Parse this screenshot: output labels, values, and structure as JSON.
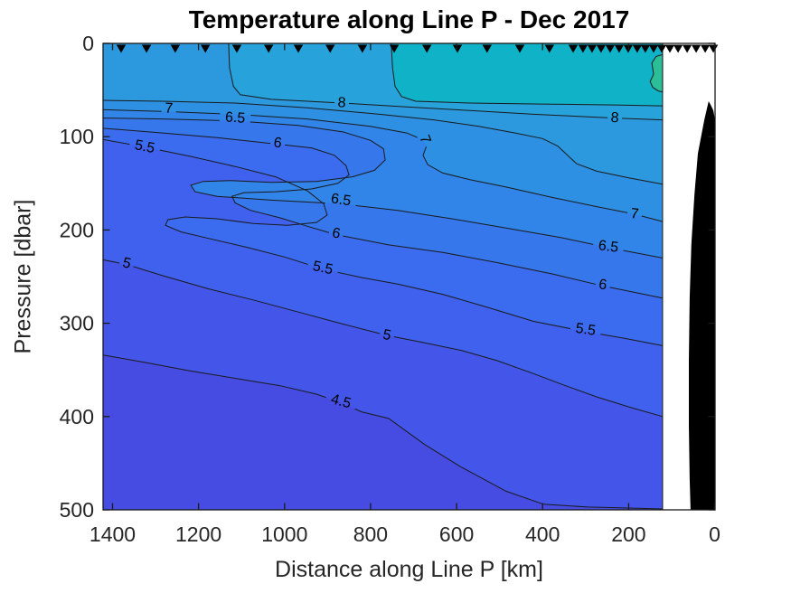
{
  "chart_data": {
    "type": "filled_contour",
    "title": "Temperature along Line P - Dec 2017",
    "xlabel": "Distance along Line P [km]",
    "ylabel": "Pressure [dbar]",
    "x_ticks": [
      1400,
      1200,
      1000,
      800,
      600,
      400,
      200,
      0
    ],
    "y_ticks": [
      0,
      100,
      200,
      300,
      400,
      500
    ],
    "x_range": [
      1422,
      -1
    ],
    "y_range": [
      0,
      500
    ],
    "x_axis_reversed": true,
    "data_edge_km": 121,
    "units": {
      "x": "km",
      "y": "dbar",
      "z": "degC"
    },
    "axis_color": "#262626",
    "line_color": "#1a1a1a",
    "base_band": {
      "label": "<4.5",
      "color": "#464CE1"
    },
    "bands": [
      {
        "level": 4.5,
        "color": "#4456E9",
        "points": [
          [
            1422,
            334
          ],
          [
            1325,
            342
          ],
          [
            1220,
            351
          ],
          [
            1115,
            359
          ],
          [
            1010,
            367
          ],
          [
            926,
            376
          ],
          [
            869,
            385
          ],
          [
            821,
            395
          ],
          [
            758,
            402
          ],
          [
            674,
            430
          ],
          [
            590,
            454
          ],
          [
            485,
            480
          ],
          [
            398,
            494
          ],
          [
            295,
            497
          ],
          [
            211,
            498
          ],
          [
            121,
            499
          ]
        ]
      },
      {
        "level": 5,
        "color": "#4061EE",
        "points": [
          [
            1422,
            232
          ],
          [
            1367,
            237
          ],
          [
            1283,
            249
          ],
          [
            1178,
            263
          ],
          [
            1073,
            275
          ],
          [
            968,
            288
          ],
          [
            863,
            301
          ],
          [
            762,
            313
          ],
          [
            674,
            321
          ],
          [
            590,
            329
          ],
          [
            506,
            340
          ],
          [
            421,
            354
          ],
          [
            358,
            365
          ],
          [
            274,
            379
          ],
          [
            190,
            391
          ],
          [
            121,
            400
          ]
        ]
      },
      {
        "level": 5.5,
        "color": "#3B6CEF",
        "points": [
          [
            1422,
            103
          ],
          [
            1325,
            111
          ],
          [
            1220,
            121
          ],
          [
            1115,
            132
          ],
          [
            1021,
            143
          ],
          [
            947,
            158
          ],
          [
            909,
            172
          ],
          [
            901,
            184
          ],
          [
            926,
            192
          ],
          [
            993,
            195
          ],
          [
            1073,
            193
          ],
          [
            1157,
            188
          ],
          [
            1231,
            186
          ],
          [
            1271,
            189
          ],
          [
            1277,
            195
          ],
          [
            1241,
            202
          ],
          [
            1168,
            210
          ],
          [
            1084,
            219
          ],
          [
            1000,
            229
          ],
          [
            911,
            242
          ],
          [
            821,
            251
          ],
          [
            737,
            258
          ],
          [
            632,
            269
          ],
          [
            527,
            283
          ],
          [
            421,
            298
          ],
          [
            300,
            309
          ],
          [
            211,
            316
          ],
          [
            121,
            324
          ]
        ]
      },
      {
        "level": 6,
        "color": "#3678EC",
        "points": [
          [
            1422,
            91
          ],
          [
            1283,
            96
          ],
          [
            1157,
            101
          ],
          [
            1016,
            108
          ],
          [
            937,
            112
          ],
          [
            884,
            120
          ],
          [
            857,
            131
          ],
          [
            850,
            141
          ],
          [
            876,
            150
          ],
          [
            937,
            156
          ],
          [
            1021,
            159
          ],
          [
            1094,
            160
          ],
          [
            1122,
            164
          ],
          [
            1115,
            171
          ],
          [
            1079,
            179
          ],
          [
            1010,
            187
          ],
          [
            947,
            196
          ],
          [
            880,
            205
          ],
          [
            758,
            216
          ],
          [
            632,
            224
          ],
          [
            506,
            235
          ],
          [
            379,
            247
          ],
          [
            260,
            260
          ],
          [
            121,
            273
          ]
        ]
      },
      {
        "level": 6.5,
        "color": "#3184E8",
        "points": [
          [
            1422,
            80
          ],
          [
            1283,
            81
          ],
          [
            1115,
            83
          ],
          [
            968,
            88
          ],
          [
            863,
            95
          ],
          [
            800,
            104
          ],
          [
            770,
            113
          ],
          [
            766,
            125
          ],
          [
            791,
            136
          ],
          [
            842,
            143
          ],
          [
            926,
            148
          ],
          [
            1031,
            149
          ],
          [
            1126,
            147
          ],
          [
            1189,
            148
          ],
          [
            1218,
            152
          ],
          [
            1208,
            159
          ],
          [
            1157,
            164
          ],
          [
            1031,
            168
          ],
          [
            869,
            172
          ],
          [
            737,
            179
          ],
          [
            611,
            188
          ],
          [
            485,
            198
          ],
          [
            358,
            208
          ],
          [
            247,
            219
          ],
          [
            121,
            230
          ]
        ]
      },
      {
        "level": 7,
        "color": "#2E90E3",
        "points": [
          [
            1422,
            71
          ],
          [
            1283,
            73
          ],
          [
            1115,
            76
          ],
          [
            947,
            81
          ],
          [
            800,
            89
          ],
          [
            716,
            96
          ],
          [
            680,
            103
          ],
          [
            670,
            110
          ],
          [
            678,
            120
          ],
          [
            667,
            130
          ],
          [
            632,
            139
          ],
          [
            569,
            146
          ],
          [
            485,
            154
          ],
          [
            379,
            165
          ],
          [
            274,
            175
          ],
          [
            186,
            183
          ],
          [
            121,
            191
          ]
        ]
      },
      {
        "level": 7.5,
        "color": "#2C99DF",
        "points": [
          [
            1422,
            61
          ],
          [
            1283,
            62
          ],
          [
            1115,
            64
          ],
          [
            947,
            69
          ],
          [
            779,
            76
          ],
          [
            653,
            82
          ],
          [
            548,
            89
          ],
          [
            464,
            96
          ],
          [
            400,
            102
          ],
          [
            365,
            110
          ],
          [
            342,
            120
          ],
          [
            321,
            129
          ],
          [
            274,
            137
          ],
          [
            201,
            144
          ],
          [
            121,
            151
          ]
        ]
      },
      {
        "level": 8,
        "color": "#27A2DA",
        "points": [
          [
            1130,
            0
          ],
          [
            1128,
            26
          ],
          [
            1119,
            46
          ],
          [
            1103,
            55
          ],
          [
            1031,
            60
          ],
          [
            867,
            64
          ],
          [
            716,
            68
          ],
          [
            569,
            72
          ],
          [
            421,
            76
          ],
          [
            232,
            80
          ],
          [
            121,
            82
          ]
        ]
      },
      {
        "level": 8.5,
        "color": "#10B2C8",
        "points": [
          [
            752,
            0
          ],
          [
            749,
            26
          ],
          [
            743,
            46
          ],
          [
            728,
            57
          ],
          [
            695,
            62
          ],
          [
            569,
            64
          ],
          [
            400,
            65
          ],
          [
            232,
            66
          ],
          [
            121,
            67
          ]
        ]
      }
    ],
    "warm_patch": {
      "level": 9,
      "color": "#2CBE97",
      "points": [
        [
          121,
          12
        ],
        [
          136,
          14
        ],
        [
          146,
          21
        ],
        [
          142,
          33
        ],
        [
          150,
          41
        ],
        [
          144,
          47
        ],
        [
          131,
          51
        ],
        [
          121,
          52
        ]
      ]
    },
    "contour_labels": [
      {
        "t": "8",
        "d": 867,
        "p": 64,
        "r": 3
      },
      {
        "t": "8",
        "d": 232,
        "p": 80,
        "r": 3
      },
      {
        "t": "7",
        "d": 1269,
        "p": 70,
        "r": 3
      },
      {
        "t": "6.5",
        "d": 1115,
        "p": 80,
        "r": 4
      },
      {
        "t": "7",
        "d": 674,
        "p": 103,
        "r": 70
      },
      {
        "t": "6",
        "d": 1016,
        "p": 107,
        "r": 8
      },
      {
        "t": "5.5",
        "d": 1325,
        "p": 111,
        "r": 11
      },
      {
        "t": "6.5",
        "d": 869,
        "p": 168,
        "r": 8
      },
      {
        "t": "6",
        "d": 880,
        "p": 204,
        "r": 10
      },
      {
        "t": "5.5",
        "d": 911,
        "p": 241,
        "r": 12
      },
      {
        "t": "5",
        "d": 1367,
        "p": 236,
        "r": 14
      },
      {
        "t": "5",
        "d": 762,
        "p": 313,
        "r": 11
      },
      {
        "t": "4.5",
        "d": 869,
        "p": 384,
        "r": 15
      },
      {
        "t": "7",
        "d": 186,
        "p": 183,
        "r": 7
      },
      {
        "t": "6.5",
        "d": 247,
        "p": 218,
        "r": 7
      },
      {
        "t": "6",
        "d": 260,
        "p": 259,
        "r": 8
      },
      {
        "t": "5.5",
        "d": 300,
        "p": 307,
        "r": 8
      }
    ],
    "station_markers_km": [
      1380,
      1321,
      1254,
      1184,
      1111,
      1037,
      968,
      894,
      819,
      745,
      669,
      598,
      529,
      453,
      384,
      329,
      306,
      285,
      264,
      243,
      222,
      201,
      180,
      161,
      142,
      123,
      104,
      85,
      64,
      43,
      22,
      3
    ],
    "bathymetry": {
      "color": "#000000",
      "points": [
        [
          14,
          62
        ],
        [
          24,
          82
        ],
        [
          39,
          118
        ],
        [
          47,
          162
        ],
        [
          54,
          215
        ],
        [
          58,
          273
        ],
        [
          60,
          341
        ],
        [
          60,
          409
        ],
        [
          58,
          467
        ],
        [
          56,
          500
        ],
        [
          -2,
          500
        ],
        [
          -2,
          85
        ],
        [
          3,
          72
        ],
        [
          9,
          66
        ],
        [
          14,
          62
        ]
      ]
    }
  }
}
